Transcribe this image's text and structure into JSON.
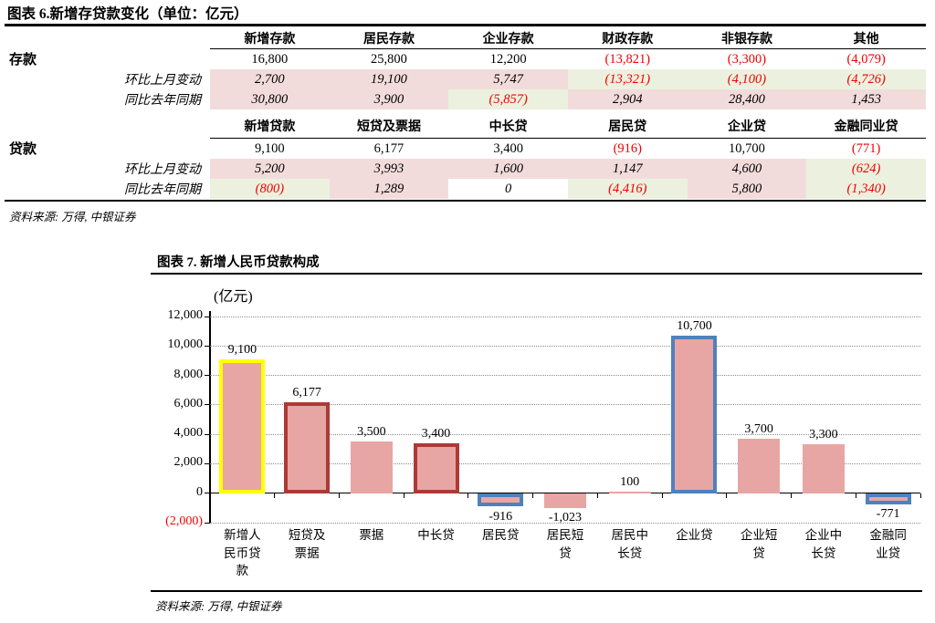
{
  "figure6": {
    "title": "图表 6.新增存贷款变化（单位：亿元）",
    "source": "资料来源: 万得, 中银证券",
    "colors": {
      "positive_bg": "#f2dcdb",
      "negative_bg": "#ebf1de",
      "negative_text": "#f00000"
    },
    "sections": [
      {
        "name": "deposit",
        "row_header": "存款",
        "columns": [
          "新增存款",
          "居民存款",
          "企业存款",
          "财政存款",
          "非银存款",
          "其他"
        ],
        "rows": [
          {
            "label": "",
            "italic": false,
            "shaded": false,
            "values": [
              "16,800",
              "25,800",
              "12,200",
              "(13,821)",
              "(3,300)",
              "(4,079)"
            ]
          },
          {
            "label": "环比上月变动",
            "italic": true,
            "shaded": true,
            "values": [
              "2,700",
              "19,100",
              "5,747",
              "(13,321)",
              "(4,100)",
              "(4,726)"
            ]
          },
          {
            "label": "同比去年同期",
            "italic": true,
            "shaded": true,
            "values": [
              "30,800",
              "3,900",
              "(5,857)",
              "2,904",
              "28,400",
              "1,453"
            ]
          }
        ]
      },
      {
        "name": "loan",
        "row_header": "贷款",
        "columns": [
          "新增贷款",
          "短贷及票据",
          "中长贷",
          "居民贷",
          "企业贷",
          "金融同业贷"
        ],
        "rows": [
          {
            "label": "",
            "italic": false,
            "shaded": false,
            "values": [
              "9,100",
              "6,177",
              "3,400",
              "(916)",
              "10,700",
              "(771)"
            ]
          },
          {
            "label": "环比上月变动",
            "italic": true,
            "shaded": true,
            "values": [
              "5,200",
              "3,993",
              "1,600",
              "1,147",
              "4,600",
              "(624)"
            ]
          },
          {
            "label": "同比去年同期",
            "italic": true,
            "shaded": true,
            "values": [
              "(800)",
              "1,289",
              "0",
              "(4,416)",
              "5,800",
              "(1,340)"
            ]
          }
        ]
      }
    ]
  },
  "figure7": {
    "title": "图表 7. 新增人民币贷款构成",
    "source": "资料来源: 万得, 中银证券",
    "chart_data": {
      "type": "bar",
      "title": "图表 7. 新增人民币贷款构成",
      "unit_label": "(亿元)",
      "categories": [
        "新增人民币贷款",
        "短贷及票据",
        "票据",
        "中长贷",
        "居民贷",
        "居民短贷",
        "居民中长贷",
        "企业贷",
        "企业短贷",
        "企业中长贷",
        "金融同业贷"
      ],
      "values": [
        9100,
        6177,
        3500,
        3400,
        -916,
        -1023,
        100,
        10700,
        3700,
        3300,
        -771
      ],
      "value_labels": [
        "9,100",
        "6,177",
        "3,500",
        "3,400",
        "-916",
        "-1,023",
        "100",
        "10,700",
        "3,700",
        "3,300",
        "-771"
      ],
      "bar_borders": [
        "yellow",
        "darkred",
        "none",
        "darkred",
        "blue",
        "none",
        "none",
        "blue",
        "none",
        "none",
        "blue"
      ],
      "ylim": [
        -2000,
        12000
      ],
      "ytick_step": 2000,
      "ytick_labels": [
        "12,000",
        "10,000",
        "8,000",
        "6,000",
        "4,000",
        "2,000",
        "0",
        "(2,000)"
      ],
      "grid": "horizontal-dotted",
      "legend": "none",
      "colors": {
        "bar_fill": "#e7a6a4",
        "border_yellow": "#ffff00",
        "border_darkred": "#ac3a36",
        "border_blue": "#4f81bd",
        "negative_axis_label": "#f00000"
      }
    }
  }
}
